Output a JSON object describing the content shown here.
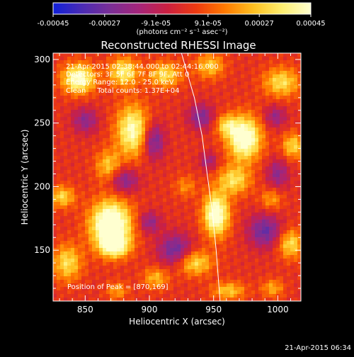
{
  "chart_data": {
    "type": "heatmap",
    "title": "Reconstructed RHESSI Image",
    "xlabel": "Heliocentric X (arcsec)",
    "ylabel": "Heliocentric Y (arcsec)",
    "xlim": [
      825,
      1018
    ],
    "ylim": [
      110,
      305
    ],
    "x_ticks": [
      850,
      900,
      950,
      1000
    ],
    "y_ticks": [
      150,
      200,
      250,
      300
    ],
    "colorbar": {
      "min": -0.00045,
      "max": 0.00045,
      "tick_values": [
        -0.00045,
        -0.00027,
        -9.1e-05,
        9.1e-05,
        0.00027,
        0.00045
      ],
      "tick_labels": [
        "-0.00045",
        "-0.00027",
        "-9.1e-05",
        "9.1e-05",
        "0.00027",
        "0.00045"
      ],
      "unit_label": "(photons cm⁻² s⁻¹ asec⁻²)",
      "colors": [
        "#1020d8",
        "#4a2bb4",
        "#7a2e96",
        "#a5257a",
        "#cc2040",
        "#ee3a10",
        "#ff7a00",
        "#ffc020",
        "#ffef70",
        "#ffffd0"
      ]
    },
    "annotations": [
      "21-Apr-2015 02:38:44.000 to 02:44:16.000",
      "Detectors: 3F 5F 6F 7F 8F 9F, Att 0",
      "Energy Range: 12.0 - 25.0 keV",
      "Clean     Total counts: 1.37E+04",
      "Position of Peak = [870,169]"
    ],
    "peak": {
      "x": 870,
      "y": 169,
      "value": 0.00045
    },
    "sources": [
      {
        "x": 870,
        "y": 170,
        "sx": 11,
        "sy": 13,
        "amp": 0.0006
      },
      {
        "x": 873,
        "y": 153,
        "sx": 8,
        "sy": 6,
        "amp": 0.00035
      },
      {
        "x": 952,
        "y": 178,
        "sx": 7,
        "sy": 12,
        "amp": 0.0005
      },
      {
        "x": 966,
        "y": 205,
        "sx": 9,
        "sy": 8,
        "amp": 0.0003
      },
      {
        "x": 974,
        "y": 238,
        "sx": 9,
        "sy": 12,
        "amp": 0.00052
      },
      {
        "x": 960,
        "y": 248,
        "sx": 6,
        "sy": 6,
        "amp": 0.00025
      },
      {
        "x": 887,
        "y": 244,
        "sx": 9,
        "sy": 14,
        "amp": 0.00042
      },
      {
        "x": 868,
        "y": 216,
        "sx": 7,
        "sy": 9,
        "amp": 0.00025
      },
      {
        "x": 845,
        "y": 285,
        "sx": 9,
        "sy": 8,
        "amp": 0.00045
      },
      {
        "x": 880,
        "y": 290,
        "sx": 8,
        "sy": 8,
        "amp": 0.00035
      },
      {
        "x": 912,
        "y": 288,
        "sx": 9,
        "sy": 7,
        "amp": 0.0003
      },
      {
        "x": 947,
        "y": 295,
        "sx": 8,
        "sy": 7,
        "amp": 0.00025
      },
      {
        "x": 1003,
        "y": 282,
        "sx": 10,
        "sy": 8,
        "amp": 0.0003
      },
      {
        "x": 1012,
        "y": 232,
        "sx": 6,
        "sy": 7,
        "amp": 0.00028
      },
      {
        "x": 1010,
        "y": 155,
        "sx": 7,
        "sy": 8,
        "amp": 0.0003
      },
      {
        "x": 935,
        "y": 140,
        "sx": 10,
        "sy": 7,
        "amp": 0.0003
      },
      {
        "x": 836,
        "y": 140,
        "sx": 8,
        "sy": 10,
        "amp": 0.0003
      },
      {
        "x": 832,
        "y": 192,
        "sx": 7,
        "sy": 6,
        "amp": 0.00028
      },
      {
        "x": 962,
        "y": 118,
        "sx": 9,
        "sy": 5,
        "amp": 0.00025
      },
      {
        "x": 905,
        "y": 128,
        "sx": 7,
        "sy": 6,
        "amp": 0.00022
      },
      {
        "x": 875,
        "y": 118,
        "sx": 6,
        "sy": 5,
        "amp": 0.00018
      },
      {
        "x": 996,
        "y": 120,
        "sx": 6,
        "sy": 5,
        "amp": 0.0002
      },
      {
        "x": 928,
        "y": 200,
        "sx": 6,
        "sy": 6,
        "amp": 0.00015
      },
      {
        "x": 995,
        "y": 190,
        "sx": 6,
        "sy": 6,
        "amp": 0.00018
      },
      {
        "x": 903,
        "y": 236,
        "sx": 6,
        "sy": 10,
        "amp": -0.0003
      },
      {
        "x": 880,
        "y": 205,
        "sx": 8,
        "sy": 7,
        "amp": -0.00025
      },
      {
        "x": 850,
        "y": 252,
        "sx": 7,
        "sy": 7,
        "amp": -0.00022
      },
      {
        "x": 920,
        "y": 150,
        "sx": 9,
        "sy": 9,
        "amp": -0.0003
      },
      {
        "x": 900,
        "y": 172,
        "sx": 6,
        "sy": 6,
        "amp": -0.00022
      },
      {
        "x": 990,
        "y": 165,
        "sx": 9,
        "sy": 9,
        "amp": -0.0003
      },
      {
        "x": 1000,
        "y": 210,
        "sx": 6,
        "sy": 8,
        "amp": -0.00022
      },
      {
        "x": 940,
        "y": 255,
        "sx": 7,
        "sy": 7,
        "amp": -0.00025
      },
      {
        "x": 998,
        "y": 255,
        "sx": 6,
        "sy": 6,
        "amp": -0.0002
      },
      {
        "x": 946,
        "y": 220,
        "sx": 5,
        "sy": 5,
        "amp": -0.00018
      }
    ],
    "limb_curve": [
      [
        925,
        305
      ],
      [
        935,
        270
      ],
      [
        941,
        240
      ],
      [
        945,
        210
      ],
      [
        949,
        180
      ],
      [
        952,
        150
      ],
      [
        955,
        110
      ]
    ],
    "background": 2e-05
  },
  "footer": {
    "timestamp": "21-Apr-2015 06:34"
  }
}
